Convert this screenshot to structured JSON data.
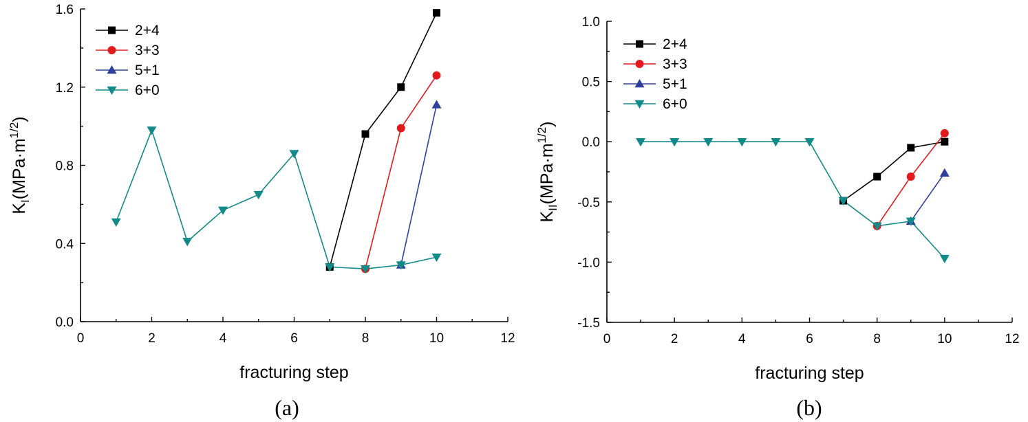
{
  "chart_data": [
    {
      "type": "line",
      "caption": "(a)",
      "xlabel": "fracturing step",
      "ylabel": {
        "main": "K",
        "sub": "I",
        "unit": "(MPa·m",
        "sup": "1/2",
        "close": ")"
      },
      "xlim": [
        0,
        12
      ],
      "ylim": [
        0.0,
        1.6
      ],
      "xticks": [
        0,
        2,
        4,
        6,
        8,
        10,
        12
      ],
      "yticks": [
        0.0,
        0.4,
        0.8,
        1.2,
        1.6
      ],
      "ytick_labels": [
        "0.0",
        "0.4",
        "0.8",
        "1.2",
        "1.6"
      ],
      "legend_position": "top-left",
      "series": [
        {
          "name": "2+4",
          "color": "#000000",
          "marker": "square",
          "points": [
            [
              7,
              0.28
            ],
            [
              8,
              0.96
            ],
            [
              9,
              1.2
            ],
            [
              10,
              1.58
            ]
          ]
        },
        {
          "name": "3+3",
          "color": "#e31a1c",
          "marker": "circle",
          "points": [
            [
              8,
              0.27
            ],
            [
              9,
              0.99
            ],
            [
              10,
              1.26
            ]
          ]
        },
        {
          "name": "5+1",
          "color": "#2f3f9e",
          "marker": "triangle-up",
          "points": [
            [
              9,
              0.29
            ],
            [
              10,
              1.11
            ]
          ]
        },
        {
          "name": "6+0",
          "color": "#138a8a",
          "marker": "triangle-down",
          "points": [
            [
              1,
              0.51
            ],
            [
              2,
              0.98
            ],
            [
              3,
              0.41
            ],
            [
              4,
              0.57
            ],
            [
              5,
              0.65
            ],
            [
              6,
              0.86
            ],
            [
              7,
              0.28
            ],
            [
              8,
              0.27
            ],
            [
              9,
              0.29
            ],
            [
              10,
              0.33
            ]
          ]
        }
      ]
    },
    {
      "type": "line",
      "caption": "(b)",
      "xlabel": "fracturing step",
      "ylabel": {
        "main": "K",
        "sub": "II",
        "unit": "(MPa·m",
        "sup": "1/2",
        "close": ")"
      },
      "xlim": [
        0,
        12
      ],
      "ylim": [
        -1.5,
        1.0
      ],
      "xticks": [
        0,
        2,
        4,
        6,
        8,
        10,
        12
      ],
      "yticks": [
        -1.5,
        -1.0,
        -0.5,
        0.0,
        0.5,
        1.0
      ],
      "ytick_labels": [
        "-1.5",
        "-1.0",
        "-0.5",
        "0.0",
        "0.5",
        "1.0"
      ],
      "legend_position": "top-left",
      "series": [
        {
          "name": "2+4",
          "color": "#000000",
          "marker": "square",
          "points": [
            [
              7,
              -0.49
            ],
            [
              8,
              -0.29
            ],
            [
              9,
              -0.05
            ],
            [
              10,
              0.0
            ]
          ]
        },
        {
          "name": "3+3",
          "color": "#e31a1c",
          "marker": "circle",
          "points": [
            [
              8,
              -0.7
            ],
            [
              9,
              -0.29
            ],
            [
              10,
              0.07
            ]
          ]
        },
        {
          "name": "5+1",
          "color": "#2f3f9e",
          "marker": "triangle-up",
          "points": [
            [
              9,
              -0.66
            ],
            [
              10,
              -0.26
            ]
          ]
        },
        {
          "name": "6+0",
          "color": "#138a8a",
          "marker": "triangle-down",
          "points": [
            [
              1,
              0.0
            ],
            [
              2,
              0.0
            ],
            [
              3,
              0.0
            ],
            [
              4,
              0.0
            ],
            [
              5,
              0.0
            ],
            [
              6,
              0.0
            ],
            [
              7,
              -0.49
            ],
            [
              8,
              -0.7
            ],
            [
              9,
              -0.66
            ],
            [
              10,
              -0.97
            ]
          ]
        }
      ]
    }
  ]
}
